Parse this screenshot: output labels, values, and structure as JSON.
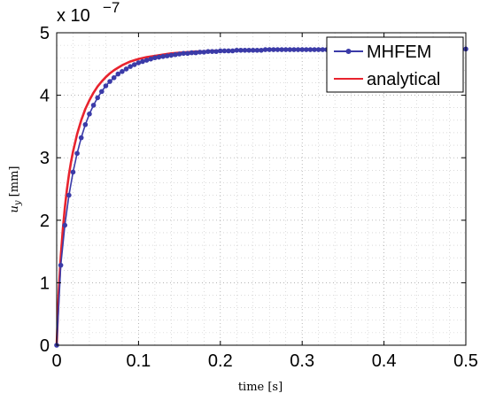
{
  "chart_data": {
    "type": "line",
    "title": "",
    "xlabel": "time [s]",
    "ylabel": "u_y [mm]",
    "ylabel_main": "u",
    "ylabel_sub": "y",
    "ylabel_unit": " [mm]",
    "y_exponent_base": "x 10",
    "y_exponent_power": "−7",
    "xlim": [
      0,
      0.5
    ],
    "ylim": [
      0,
      5
    ],
    "xticks": [
      0,
      0.1,
      0.2,
      0.3,
      0.4,
      0.5
    ],
    "xtick_labels": [
      "0",
      "0.1",
      "0.2",
      "0.3",
      "0.4",
      "0.5"
    ],
    "yticks": [
      0,
      1,
      2,
      3,
      4,
      5
    ],
    "ytick_labels": [
      "0",
      "1",
      "2",
      "3",
      "4",
      "5"
    ],
    "grid": true,
    "legend_position": "top-right",
    "series": [
      {
        "name": "MHFEM",
        "color": "#3b3ba8",
        "marker": "dot",
        "x": [
          0,
          0.005,
          0.01,
          0.015,
          0.02,
          0.025,
          0.03,
          0.035,
          0.04,
          0.045,
          0.05,
          0.055,
          0.06,
          0.065,
          0.07,
          0.075,
          0.08,
          0.085,
          0.09,
          0.095,
          0.1,
          0.105,
          0.11,
          0.115,
          0.12,
          0.125,
          0.13,
          0.135,
          0.14,
          0.145,
          0.15,
          0.155,
          0.16,
          0.165,
          0.17,
          0.175,
          0.18,
          0.185,
          0.19,
          0.195,
          0.2,
          0.205,
          0.21,
          0.215,
          0.22,
          0.225,
          0.23,
          0.235,
          0.24,
          0.245,
          0.25,
          0.255,
          0.26,
          0.265,
          0.27,
          0.275,
          0.28,
          0.285,
          0.29,
          0.295,
          0.3,
          0.305,
          0.31,
          0.315,
          0.32,
          0.325,
          0.33,
          0.335,
          0.34,
          0.345,
          0.35,
          0.355,
          0.36,
          0.365,
          0.37,
          0.375,
          0.38,
          0.385,
          0.39,
          0.395,
          0.4,
          0.405,
          0.41,
          0.415,
          0.42,
          0.425,
          0.43,
          0.435,
          0.44,
          0.445,
          0.45,
          0.455,
          0.46,
          0.465,
          0.47,
          0.475,
          0.48,
          0.485,
          0.49,
          0.495,
          0.5
        ],
        "y": [
          0,
          1.28,
          1.92,
          2.4,
          2.77,
          3.07,
          3.32,
          3.53,
          3.7,
          3.84,
          3.96,
          4.06,
          4.15,
          4.22,
          4.28,
          4.34,
          4.38,
          4.42,
          4.46,
          4.49,
          4.52,
          4.54,
          4.56,
          4.58,
          4.6,
          4.61,
          4.62,
          4.63,
          4.64,
          4.65,
          4.66,
          4.67,
          4.67,
          4.68,
          4.68,
          4.69,
          4.69,
          4.7,
          4.7,
          4.7,
          4.71,
          4.71,
          4.71,
          4.71,
          4.72,
          4.72,
          4.72,
          4.72,
          4.72,
          4.72,
          4.72,
          4.73,
          4.73,
          4.73,
          4.73,
          4.73,
          4.73,
          4.73,
          4.73,
          4.73,
          4.73,
          4.73,
          4.73,
          4.73,
          4.73,
          4.73,
          4.73,
          4.73,
          4.73,
          4.73,
          4.73,
          4.73,
          4.73,
          4.73,
          4.73,
          4.73,
          4.73,
          4.73,
          4.73,
          4.73,
          4.73,
          4.73,
          4.73,
          4.73,
          4.73,
          4.73,
          4.73,
          4.73,
          4.73,
          4.73,
          4.73,
          4.73,
          4.73,
          4.73,
          4.73,
          4.73,
          4.73,
          4.73,
          4.73,
          4.73,
          4.74
        ]
      },
      {
        "name": "analytical",
        "color": "#e8232e",
        "marker": "none",
        "x": [
          0,
          0.0025,
          0.005,
          0.0075,
          0.01,
          0.0125,
          0.015,
          0.0175,
          0.02,
          0.025,
          0.03,
          0.035,
          0.04,
          0.045,
          0.05,
          0.055,
          0.06,
          0.065,
          0.07,
          0.075,
          0.08,
          0.09,
          0.1,
          0.11,
          0.12,
          0.13,
          0.14,
          0.15,
          0.16,
          0.17,
          0.18,
          0.19,
          0.2,
          0.22,
          0.24,
          0.26,
          0.28,
          0.3,
          0.33,
          0.36,
          0.4,
          0.45,
          0.5
        ],
        "y": [
          0,
          0.85,
          1.42,
          1.85,
          2.2,
          2.49,
          2.73,
          2.93,
          3.1,
          3.38,
          3.6,
          3.78,
          3.92,
          4.04,
          4.14,
          4.22,
          4.29,
          4.35,
          4.4,
          4.44,
          4.48,
          4.54,
          4.58,
          4.61,
          4.63,
          4.65,
          4.67,
          4.68,
          4.69,
          4.7,
          4.7,
          4.71,
          4.71,
          4.72,
          4.72,
          4.73,
          4.73,
          4.73,
          4.73,
          4.73,
          4.73,
          4.73,
          4.74
        ]
      }
    ]
  }
}
